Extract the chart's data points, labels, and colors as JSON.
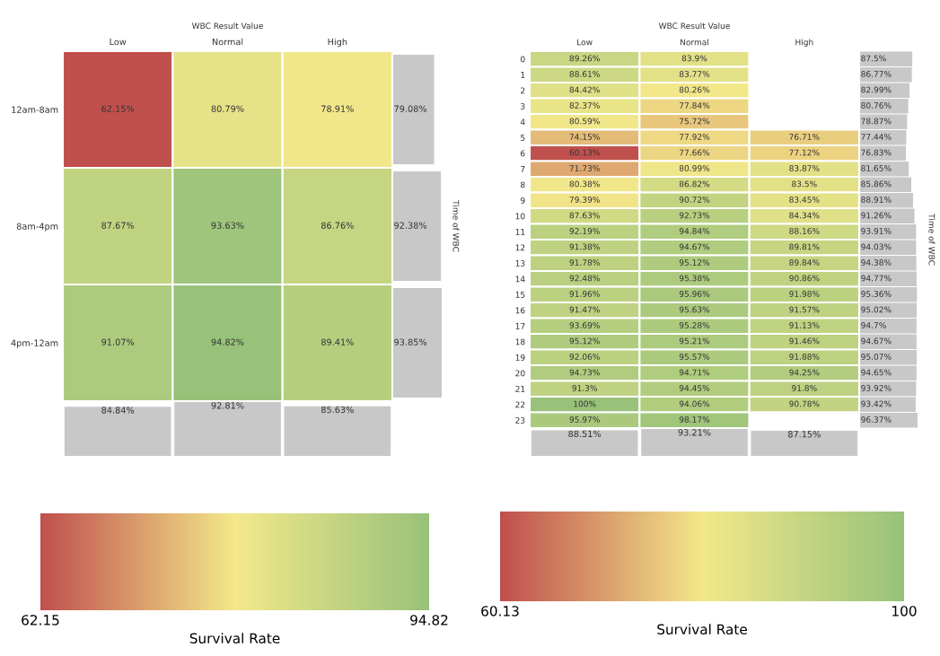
{
  "chart_data": [
    {
      "type": "heatmap",
      "title": "WBC Result Value",
      "categories": [
        "Low",
        "Normal",
        "High"
      ],
      "y_categories": [
        "12am-8am",
        "8am-4pm",
        "4pm-12am"
      ],
      "cells": [
        [
          62.15,
          80.79,
          78.91
        ],
        [
          87.67,
          93.63,
          86.76
        ],
        [
          91.07,
          94.82,
          89.41
        ]
      ],
      "cell_labels": [
        [
          "62.15%",
          "80.79%",
          "78.91%"
        ],
        [
          "87.67%",
          "93.63%",
          "86.76%"
        ],
        [
          "91.07%",
          "94.82%",
          "89.41%"
        ]
      ],
      "clim": [
        62.15,
        94.82
      ],
      "cticks": [
        62.15,
        94.82
      ],
      "clabel": "Survival Rate"
    },
    {
      "type": "bar",
      "orientation": "horizontal",
      "categories": [
        null,
        null,
        null
      ],
      "values": [
        79.08,
        92.38,
        93.85
      ],
      "color": "#c8c8c8",
      "value_labels": [
        "79.08%",
        "92.38%",
        "93.85%"
      ],
      "ylabel": "Time of WBC",
      "tick_labels": false
    },
    {
      "type": "bar",
      "categories": [
        null,
        null,
        null
      ],
      "values": [
        84.84,
        92.81,
        85.63
      ],
      "color": "#c8c8c8",
      "value_labels": [
        "84.84%",
        "92.81%",
        "85.63%"
      ],
      "tick_labels": false
    },
    {
      "type": "heatmap",
      "title": "WBC Result Value",
      "categories": [
        "Low",
        "Normal",
        "High"
      ],
      "y_categories": [
        "0",
        "1",
        "2",
        "3",
        "4",
        "5",
        "6",
        "7",
        "8",
        "9",
        "10",
        "11",
        "12",
        "13",
        "14",
        "15",
        "16",
        "17",
        "18",
        "19",
        "20",
        "21",
        "22",
        "23"
      ],
      "cells": [
        [
          89.26,
          83.9,
          null
        ],
        [
          88.61,
          83.77,
          null
        ],
        [
          84.42,
          80.26,
          null
        ],
        [
          82.37,
          77.84,
          null
        ],
        [
          80.59,
          75.72,
          null
        ],
        [
          74.15,
          77.92,
          76.71
        ],
        [
          60.13,
          77.66,
          77.12
        ],
        [
          71.73,
          80.99,
          83.87
        ],
        [
          80.38,
          86.82,
          83.5
        ],
        [
          79.39,
          90.72,
          83.45
        ],
        [
          87.63,
          92.73,
          84.34
        ],
        [
          92.19,
          94.84,
          88.16
        ],
        [
          91.38,
          94.67,
          89.81
        ],
        [
          91.78,
          95.12,
          89.84
        ],
        [
          92.48,
          95.38,
          90.86
        ],
        [
          91.96,
          95.96,
          91.98
        ],
        [
          91.47,
          95.63,
          91.57
        ],
        [
          93.69,
          95.28,
          91.13
        ],
        [
          95.12,
          95.21,
          91.46
        ],
        [
          92.06,
          95.57,
          91.88
        ],
        [
          94.73,
          94.71,
          94.25
        ],
        [
          91.3,
          94.45,
          91.8
        ],
        [
          100,
          94.06,
          90.78
        ],
        [
          95.97,
          98.17,
          null
        ]
      ],
      "cell_labels": [
        [
          "89.26%",
          "83.9%",
          null
        ],
        [
          "88.61%",
          "83.77%",
          null
        ],
        [
          "84.42%",
          "80.26%",
          null
        ],
        [
          "82.37%",
          "77.84%",
          null
        ],
        [
          "80.59%",
          "75.72%",
          null
        ],
        [
          "74.15%",
          "77.92%",
          "76.71%"
        ],
        [
          "60.13%",
          "77.66%",
          "77.12%"
        ],
        [
          "71.73%",
          "80.99%",
          "83.87%"
        ],
        [
          "80.38%",
          "86.82%",
          "83.5%"
        ],
        [
          "79.39%",
          "90.72%",
          "83.45%"
        ],
        [
          "87.63%",
          "92.73%",
          "84.34%"
        ],
        [
          "92.19%",
          "94.84%",
          "88.16%"
        ],
        [
          "91.38%",
          "94.67%",
          "89.81%"
        ],
        [
          "91.78%",
          "95.12%",
          "89.84%"
        ],
        [
          "92.48%",
          "95.38%",
          "90.86%"
        ],
        [
          "91.96%",
          "95.96%",
          "91.98%"
        ],
        [
          "91.47%",
          "95.63%",
          "91.57%"
        ],
        [
          "93.69%",
          "95.28%",
          "91.13%"
        ],
        [
          "95.12%",
          "95.21%",
          "91.46%"
        ],
        [
          "92.06%",
          "95.57%",
          "91.88%"
        ],
        [
          "94.73%",
          "94.71%",
          "94.25%"
        ],
        [
          "91.3%",
          "94.45%",
          "91.8%"
        ],
        [
          "100%",
          "94.06%",
          "90.78%"
        ],
        [
          "95.97%",
          "98.17%",
          null
        ]
      ],
      "clim": [
        60.13,
        100
      ],
      "cticks": [
        60.13,
        100
      ],
      "clabel": "Survival Rate"
    },
    {
      "type": "bar",
      "orientation": "horizontal",
      "categories": [
        null,
        null,
        null,
        null,
        null,
        null,
        null,
        null,
        null,
        null,
        null,
        null,
        null,
        null,
        null,
        null,
        null,
        null,
        null,
        null,
        null,
        null,
        null,
        null
      ],
      "values": [
        87.5,
        86.77,
        82.99,
        80.76,
        78.87,
        77.44,
        76.83,
        81.65,
        85.86,
        88.91,
        91.26,
        93.91,
        94.03,
        94.38,
        94.77,
        95.36,
        95.02,
        94.7,
        94.67,
        95.07,
        94.65,
        93.92,
        93.42,
        96.37
      ],
      "color": "#c8c8c8",
      "value_labels": [
        "87.5%",
        "86.77%",
        "82.99%",
        "80.76%",
        "78.87%",
        "77.44%",
        "76.83%",
        "81.65%",
        "85.86%",
        "88.91%",
        "91.26%",
        "93.91%",
        "94.03%",
        "94.38%",
        "94.77%",
        "95.36%",
        "95.02%",
        "94.7%",
        "94.67%",
        "95.07%",
        "94.65%",
        "93.92%",
        "93.42%",
        "96.37%"
      ],
      "ylabel": "Time of WBC",
      "tick_labels": false
    },
    {
      "type": "bar",
      "categories": [
        null,
        null,
        null
      ],
      "values": [
        88.51,
        93.21,
        87.15
      ],
      "color": "#c8c8c8",
      "value_labels": [
        "88.51%",
        "93.21%",
        "87.15%"
      ],
      "tick_labels": false
    }
  ]
}
